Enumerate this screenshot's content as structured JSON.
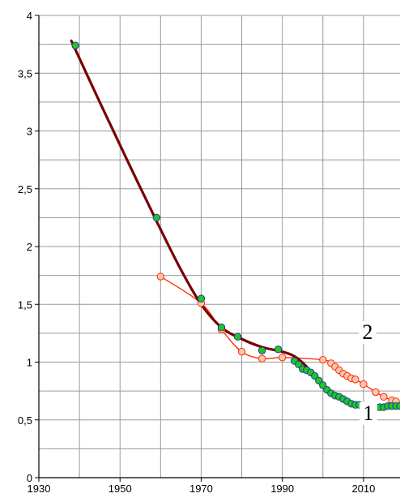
{
  "chart_data": {
    "type": "scatter",
    "title": "",
    "xlabel": "",
    "ylabel": "",
    "xlim": [
      1930,
      2019
    ],
    "ylim": [
      0,
      4
    ],
    "x_major_ticks": [
      1930,
      1950,
      1970,
      1990,
      2010
    ],
    "x_minor_step": 10,
    "y_major_ticks": [
      0,
      0.5,
      1,
      1.5,
      2,
      2.5,
      3,
      3.5,
      4
    ],
    "y_tick_labels": [
      "0",
      "0,5",
      "1",
      "1,5",
      "2",
      "2,5",
      "3",
      "3,5",
      "4"
    ],
    "x_tick_labels": [
      "1930",
      "1950",
      "1970",
      "1990",
      "2010"
    ],
    "y_minor_step": 0.25,
    "grid": true,
    "legend": "none",
    "annotations": [
      {
        "text": "1",
        "x": 2011.2,
        "y": 0.5,
        "series": 0
      },
      {
        "text": "2",
        "x": 2011.0,
        "y": 1.2,
        "series": 1
      }
    ],
    "series": [
      {
        "label": "1",
        "color": "#22c622",
        "edge_color": "#1b3d9e",
        "points": [
          {
            "x": 1939,
            "y": 3.74
          },
          {
            "x": 1959,
            "y": 2.25
          },
          {
            "x": 1970,
            "y": 1.55
          },
          {
            "x": 1975,
            "y": 1.3
          },
          {
            "x": 1979,
            "y": 1.22
          },
          {
            "x": 1985,
            "y": 1.1
          },
          {
            "x": 1989,
            "y": 1.11
          },
          {
            "x": 1993,
            "y": 1.01
          },
          {
            "x": 1994,
            "y": 0.98
          },
          {
            "x": 1995,
            "y": 0.94
          },
          {
            "x": 1996,
            "y": 0.93
          },
          {
            "x": 1997,
            "y": 0.91
          },
          {
            "x": 1998,
            "y": 0.88
          },
          {
            "x": 1999,
            "y": 0.84
          },
          {
            "x": 2000,
            "y": 0.8
          },
          {
            "x": 2001,
            "y": 0.76
          },
          {
            "x": 2002,
            "y": 0.73
          },
          {
            "x": 2003,
            "y": 0.71
          },
          {
            "x": 2004,
            "y": 0.7
          },
          {
            "x": 2005,
            "y": 0.68
          },
          {
            "x": 2006,
            "y": 0.66
          },
          {
            "x": 2007,
            "y": 0.64
          },
          {
            "x": 2008,
            "y": 0.63
          },
          {
            "x": 2009,
            "y": 0.63
          },
          {
            "x": 2011,
            "y": 0.6
          },
          {
            "x": 2012,
            "y": 0.6
          },
          {
            "x": 2013,
            "y": 0.61
          },
          {
            "x": 2014,
            "y": 0.61
          },
          {
            "x": 2015,
            "y": 0.61
          },
          {
            "x": 2016,
            "y": 0.62
          },
          {
            "x": 2017,
            "y": 0.62
          },
          {
            "x": 2018,
            "y": 0.62
          },
          {
            "x": 2019,
            "y": 0.62
          }
        ]
      },
      {
        "label": "2",
        "color": "#f9c7ae",
        "edge_color": "#ff2a00",
        "line_color": "#ff2a00",
        "points": [
          {
            "x": 1960,
            "y": 1.74
          },
          {
            "x": 1970,
            "y": 1.51
          },
          {
            "x": 1975,
            "y": 1.28
          },
          {
            "x": 1980,
            "y": 1.09
          },
          {
            "x": 1985,
            "y": 1.03
          },
          {
            "x": 1990,
            "y": 1.04
          },
          {
            "x": 2000,
            "y": 1.02
          },
          {
            "x": 2002,
            "y": 0.99
          },
          {
            "x": 2003,
            "y": 0.96
          },
          {
            "x": 2004,
            "y": 0.93
          },
          {
            "x": 2005,
            "y": 0.9
          },
          {
            "x": 2006,
            "y": 0.88
          },
          {
            "x": 2007,
            "y": 0.86
          },
          {
            "x": 2008,
            "y": 0.85
          },
          {
            "x": 2010,
            "y": 0.81
          },
          {
            "x": 2013,
            "y": 0.74
          },
          {
            "x": 2015,
            "y": 0.7
          },
          {
            "x": 2017,
            "y": 0.67
          },
          {
            "x": 2018,
            "y": 0.66
          }
        ]
      }
    ],
    "trend_line": {
      "color": "#7a0000",
      "points": [
        {
          "x": 1938,
          "y": 3.78
        },
        {
          "x": 1945,
          "y": 3.25
        },
        {
          "x": 1952,
          "y": 2.73
        },
        {
          "x": 1959,
          "y": 2.22
        },
        {
          "x": 1965,
          "y": 1.8
        },
        {
          "x": 1970,
          "y": 1.5
        },
        {
          "x": 1975,
          "y": 1.3
        },
        {
          "x": 1980,
          "y": 1.2
        },
        {
          "x": 1985,
          "y": 1.13
        },
        {
          "x": 1990,
          "y": 1.09
        },
        {
          "x": 1993,
          "y": 1.05
        },
        {
          "x": 1996,
          "y": 0.96
        },
        {
          "x": 2000,
          "y": 0.8
        },
        {
          "x": 2004,
          "y": 0.7
        },
        {
          "x": 2008,
          "y": 0.64
        },
        {
          "x": 2012,
          "y": 0.61
        },
        {
          "x": 2016,
          "y": 0.61
        },
        {
          "x": 2019,
          "y": 0.62
        }
      ]
    }
  }
}
